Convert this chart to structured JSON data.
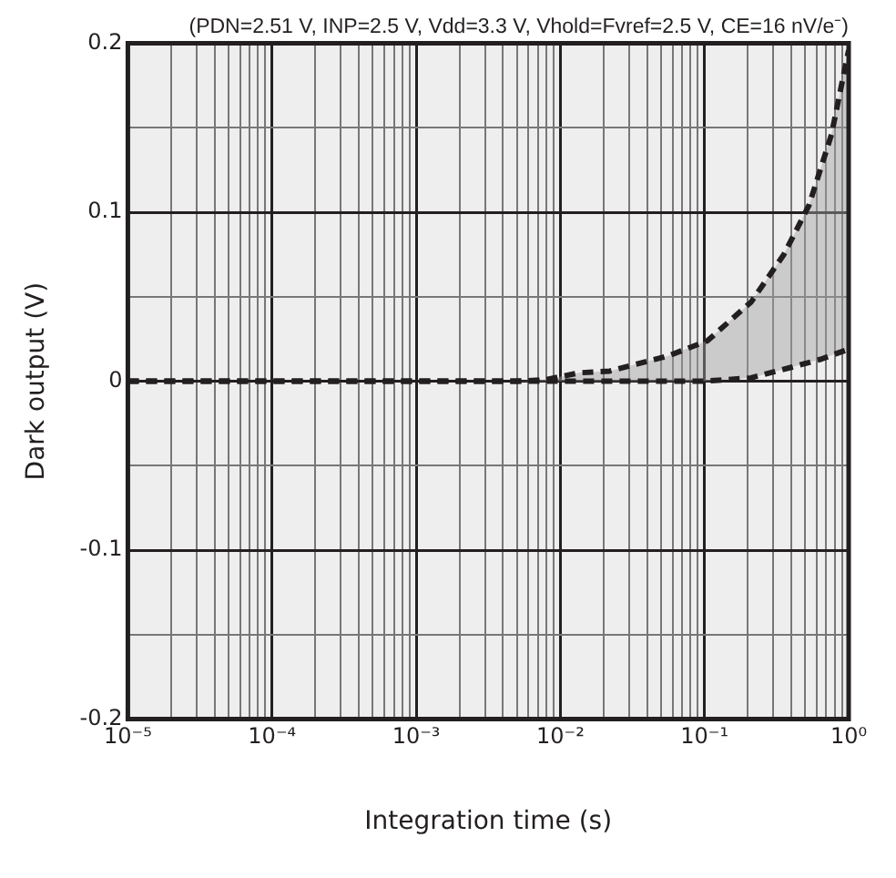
{
  "chart_data": {
    "type": "line",
    "title": "(PDN=2.51 V, INP=2.5 V, Vdd=3.3 V, Vhold=Fvref=2.5 V, CE=16 nV/e⁻)",
    "xlabel": "Integration time (s)",
    "ylabel": "Dark output (V)",
    "log": "x",
    "grid": true,
    "legend": false,
    "marker": "none",
    "line_style": "dashed",
    "series": [
      {
        "color": "#231f20",
        "x": [
          1e-05,
          0.005,
          0.008,
          0.0135,
          0.022,
          0.056,
          0.105,
          0.211,
          0.355,
          0.53,
          0.76,
          1
        ],
        "values": [
          0,
          0,
          0.001,
          0.005,
          0.006,
          0.015,
          0.024,
          0.047,
          0.075,
          0.104,
          0.146,
          0.196
        ]
      },
      {
        "color": "#231f20",
        "x": [
          1e-05,
          0.1,
          0.21,
          0.39,
          0.64,
          1
        ],
        "values": [
          0,
          0,
          0.002,
          0.008,
          0.013,
          0.019
        ]
      }
    ],
    "xlim": [
      1e-05,
      1
    ],
    "xticks": [
      {
        "value": 1e-05,
        "label": "10⁻⁵"
      },
      {
        "value": 2e-05,
        "label": null
      },
      {
        "value": 3e-05,
        "label": null
      },
      {
        "value": 4e-05,
        "label": null
      },
      {
        "value": 5e-05,
        "label": null
      },
      {
        "value": 6e-05,
        "label": null
      },
      {
        "value": 7e-05,
        "label": null
      },
      {
        "value": 8e-05,
        "label": null
      },
      {
        "value": 9e-05,
        "label": null
      },
      {
        "value": 0.0001,
        "label": "10⁻⁴"
      },
      {
        "value": 0.0002,
        "label": null
      },
      {
        "value": 0.0003,
        "label": null
      },
      {
        "value": 0.0004,
        "label": null
      },
      {
        "value": 0.0005,
        "label": null
      },
      {
        "value": 0.0006,
        "label": null
      },
      {
        "value": 0.0007,
        "label": null
      },
      {
        "value": 0.0008,
        "label": null
      },
      {
        "value": 0.0009,
        "label": null
      },
      {
        "value": 0.001,
        "label": "10⁻³"
      },
      {
        "value": 0.002,
        "label": null
      },
      {
        "value": 0.003,
        "label": null
      },
      {
        "value": 0.004,
        "label": null
      },
      {
        "value": 0.005,
        "label": null
      },
      {
        "value": 0.006,
        "label": null
      },
      {
        "value": 0.007,
        "label": null
      },
      {
        "value": 0.008,
        "label": null
      },
      {
        "value": 0.009,
        "label": null
      },
      {
        "value": 0.01,
        "label": "10⁻²"
      },
      {
        "value": 0.02,
        "label": null
      },
      {
        "value": 0.03,
        "label": null
      },
      {
        "value": 0.04,
        "label": null
      },
      {
        "value": 0.05,
        "label": null
      },
      {
        "value": 0.06,
        "label": null
      },
      {
        "value": 0.07,
        "label": null
      },
      {
        "value": 0.08,
        "label": null
      },
      {
        "value": 0.09,
        "label": null
      },
      {
        "value": 0.1,
        "label": "10⁻¹"
      },
      {
        "value": 0.2,
        "label": null
      },
      {
        "value": 0.3,
        "label": null
      },
      {
        "value": 0.4,
        "label": null
      },
      {
        "value": 0.5,
        "label": null
      },
      {
        "value": 0.6,
        "label": null
      },
      {
        "value": 0.7,
        "label": null
      },
      {
        "value": 0.8,
        "label": null
      },
      {
        "value": 0.9,
        "label": null
      },
      {
        "value": 1,
        "label": "10⁰"
      }
    ],
    "ylim": [
      -0.2,
      0.2
    ],
    "yticks": [
      -0.2,
      {
        "value": -0.15,
        "label": null
      },
      -0.1,
      {
        "value": -0.05,
        "label": null
      },
      0,
      {
        "value": 0.05,
        "label": null
      },
      0.1,
      {
        "value": 0.15,
        "label": null
      },
      0.2
    ]
  }
}
